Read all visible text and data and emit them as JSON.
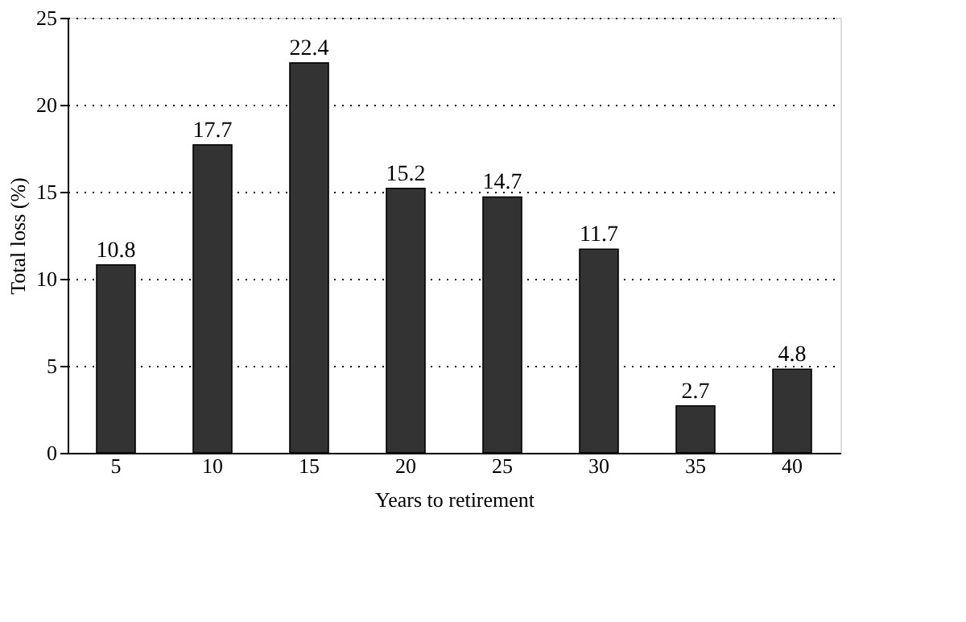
{
  "chart_data": {
    "type": "bar",
    "xlabel": "Years to retirement",
    "ylabel": "Total loss (%)",
    "categories": [
      "5",
      "10",
      "15",
      "20",
      "25",
      "30",
      "35",
      "40"
    ],
    "values": [
      10.8,
      17.7,
      22.4,
      15.2,
      14.7,
      11.7,
      2.7,
      4.8
    ],
    "color": "#333333",
    "ylim": [
      0,
      25
    ],
    "yticks": [
      0,
      5,
      10,
      15,
      20,
      25
    ],
    "grid": "y",
    "data_labels": true
  }
}
